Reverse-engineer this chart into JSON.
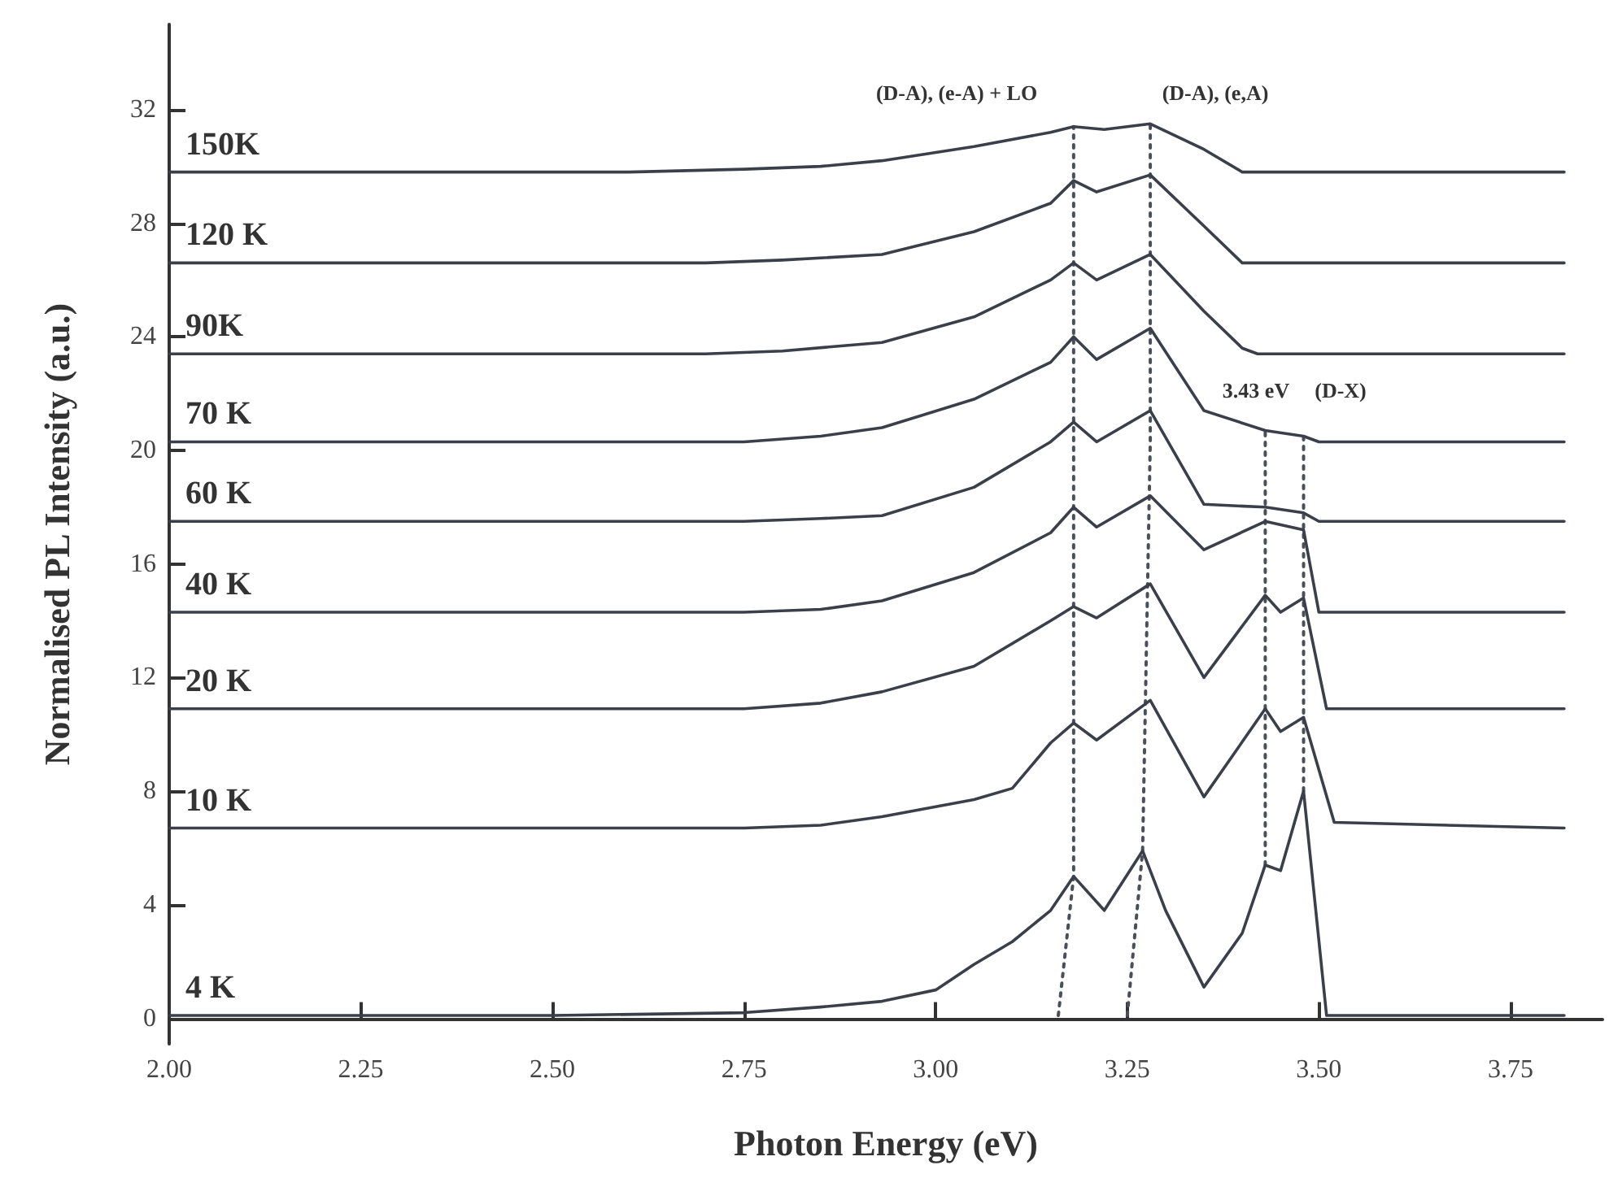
{
  "chart_data": {
    "type": "line",
    "xlabel": "Photon Energy (eV)",
    "ylabel": "Normalised PL Intensity (a.u.)",
    "xlim": [
      2.0,
      3.87
    ],
    "ylim": [
      -0.9,
      35
    ],
    "xticks": [
      {
        "value": 2,
        "label": "2.00"
      },
      {
        "value": 2.25,
        "label": "2.25"
      },
      {
        "value": 2.5,
        "label": "2.50"
      },
      {
        "value": 2.75,
        "label": "2.75"
      },
      {
        "value": 3,
        "label": "3.00"
      },
      {
        "value": 3.25,
        "label": "3.25"
      },
      {
        "value": 3.5,
        "label": "3.50"
      },
      {
        "value": 3.75,
        "label": "3.75"
      }
    ],
    "yticks": [
      0,
      4,
      8,
      12,
      16,
      20,
      24,
      28,
      32
    ],
    "grid": false,
    "legend": false,
    "marker": "none",
    "annotations": [
      "(D-A), (e-A) + LO",
      "(D-A), (e,A)",
      "3.43 eV",
      "(D-X)"
    ],
    "series": [
      {
        "name": "150K",
        "color": "#3a3f4a",
        "line_style": "solid",
        "x": [
          2.0,
          2.5,
          2.6,
          2.75,
          2.85,
          2.93,
          3.05,
          3.15,
          3.18,
          3.22,
          3.28,
          3.35,
          3.4,
          3.82
        ],
        "values": [
          29.8,
          29.8,
          29.8,
          29.9,
          30.0,
          30.2,
          30.7,
          31.2,
          31.4,
          31.3,
          31.5,
          30.6,
          29.8,
          29.8
        ]
      },
      {
        "name": "120 K",
        "color": "#3a3f4a",
        "line_style": "solid",
        "x": [
          2.0,
          2.5,
          2.7,
          2.8,
          2.93,
          3.05,
          3.15,
          3.18,
          3.21,
          3.28,
          3.35,
          3.4,
          3.82
        ],
        "values": [
          26.6,
          26.6,
          26.6,
          26.7,
          26.9,
          27.7,
          28.7,
          29.5,
          29.1,
          29.7,
          27.9,
          26.6,
          26.6
        ]
      },
      {
        "name": "90K",
        "color": "#3a3f4a",
        "line_style": "solid",
        "x": [
          2.0,
          2.5,
          2.7,
          2.8,
          2.93,
          3.05,
          3.15,
          3.18,
          3.21,
          3.28,
          3.35,
          3.4,
          3.42,
          3.82
        ],
        "values": [
          23.4,
          23.4,
          23.4,
          23.5,
          23.8,
          24.7,
          26.0,
          26.6,
          26.0,
          26.9,
          24.9,
          23.6,
          23.4,
          23.4
        ]
      },
      {
        "name": "70 K",
        "color": "#3a3f4a",
        "line_style": "solid",
        "x": [
          2.0,
          2.5,
          2.75,
          2.85,
          2.93,
          3.05,
          3.15,
          3.18,
          3.21,
          3.28,
          3.35,
          3.43,
          3.48,
          3.5,
          3.82
        ],
        "values": [
          20.3,
          20.3,
          20.3,
          20.5,
          20.8,
          21.8,
          23.1,
          24.0,
          23.2,
          24.3,
          21.4,
          20.7,
          20.5,
          20.3,
          20.3
        ]
      },
      {
        "name": "60 K",
        "color": "#3a3f4a",
        "line_style": "solid",
        "x": [
          2.0,
          2.5,
          2.75,
          2.85,
          2.93,
          3.05,
          3.15,
          3.18,
          3.21,
          3.28,
          3.35,
          3.43,
          3.48,
          3.5,
          3.82
        ],
        "values": [
          17.5,
          17.5,
          17.5,
          17.6,
          17.7,
          18.7,
          20.3,
          21.0,
          20.3,
          21.4,
          18.1,
          18.0,
          17.8,
          17.5,
          17.5
        ]
      },
      {
        "name": "40 K",
        "color": "#3a3f4a",
        "line_style": "solid",
        "x": [
          2.0,
          2.5,
          2.75,
          2.85,
          2.93,
          3.05,
          3.15,
          3.18,
          3.21,
          3.28,
          3.35,
          3.43,
          3.48,
          3.5,
          3.82
        ],
        "values": [
          14.3,
          14.3,
          14.3,
          14.4,
          14.7,
          15.7,
          17.1,
          18.0,
          17.3,
          18.4,
          16.5,
          17.5,
          17.2,
          14.3,
          14.3
        ]
      },
      {
        "name": "20 K",
        "color": "#3a3f4a",
        "line_style": "solid",
        "x": [
          2.0,
          2.5,
          2.75,
          2.85,
          2.93,
          3.05,
          3.15,
          3.18,
          3.21,
          3.28,
          3.35,
          3.43,
          3.45,
          3.48,
          3.51,
          3.82
        ],
        "values": [
          10.9,
          10.9,
          10.9,
          11.1,
          11.5,
          12.4,
          14.0,
          14.5,
          14.1,
          15.3,
          12.0,
          14.9,
          14.3,
          14.8,
          10.9,
          10.9
        ]
      },
      {
        "name": "10 K",
        "color": "#3a3f4a",
        "line_style": "solid",
        "x": [
          2.0,
          2.5,
          2.75,
          2.85,
          2.93,
          3.05,
          3.1,
          3.15,
          3.18,
          3.21,
          3.28,
          3.35,
          3.43,
          3.45,
          3.48,
          3.52,
          3.82
        ],
        "values": [
          6.7,
          6.7,
          6.7,
          6.8,
          7.1,
          7.7,
          8.1,
          9.7,
          10.4,
          9.8,
          11.2,
          7.8,
          10.9,
          10.1,
          10.6,
          6.9,
          6.7
        ]
      },
      {
        "name": "4 K",
        "color": "#3a3f4a",
        "line_style": "solid",
        "x": [
          2.0,
          2.5,
          2.75,
          2.85,
          2.93,
          3.0,
          3.05,
          3.1,
          3.15,
          3.18,
          3.22,
          3.27,
          3.3,
          3.35,
          3.4,
          3.43,
          3.45,
          3.48,
          3.51,
          3.82
        ],
        "values": [
          0.1,
          0.1,
          0.2,
          0.4,
          0.6,
          1.0,
          1.9,
          2.7,
          3.8,
          5.0,
          3.8,
          5.9,
          3.8,
          1.1,
          3.0,
          5.4,
          5.2,
          8.0,
          0.1,
          0.1
        ]
      },
      {
        "color": "#4a4f5a",
        "line_style": "dotted",
        "x": [
          3.16,
          3.18,
          3.18,
          3.18
        ],
        "values": [
          0.1,
          5.0,
          20.3,
          31.4
        ]
      },
      {
        "color": "#4a4f5a",
        "line_style": "dotted",
        "x": [
          3.25,
          3.27,
          3.28,
          3.28
        ],
        "values": [
          0.1,
          5.9,
          20.3,
          31.5
        ]
      },
      {
        "color": "#4a4f5a",
        "line_style": "dotted",
        "x": [
          3.43,
          3.43
        ],
        "values": [
          5.4,
          20.7
        ]
      },
      {
        "color": "#4a4f5a",
        "line_style": "dotted",
        "x": [
          3.48,
          3.48
        ],
        "values": [
          8.0,
          20.5
        ]
      }
    ]
  }
}
